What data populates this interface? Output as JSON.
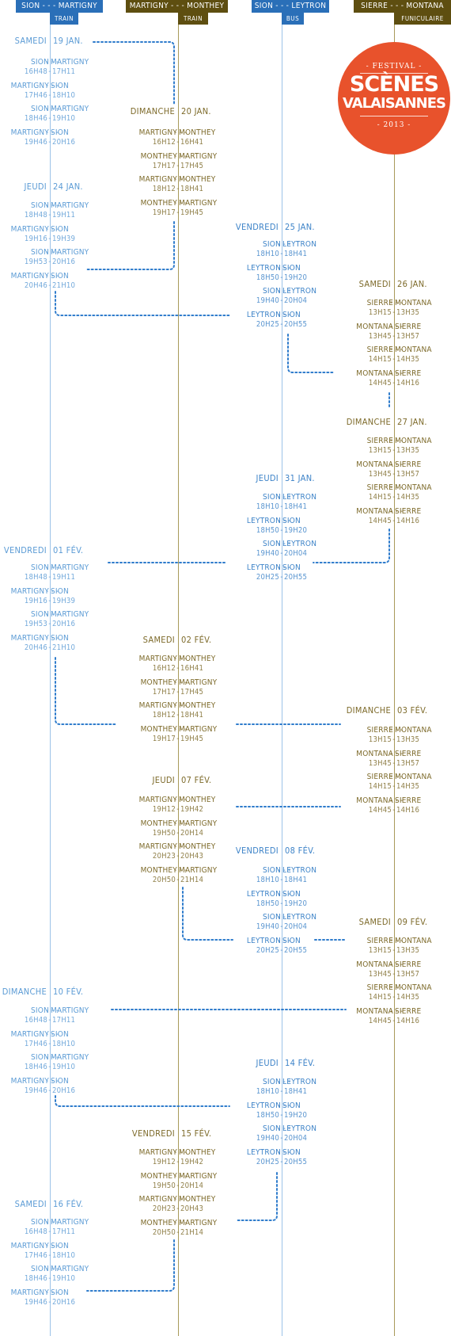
{
  "colors": {
    "train_line": "#5b9bd5",
    "mm_line": "#8a7a2e",
    "bus_line": "#5b9bd5",
    "fun_line": "#8a7a2e",
    "blue_header": "#2a6fb8",
    "olive_header": "#5e4e10",
    "logo": "#e8522c",
    "dots": "#2f7ccc"
  },
  "headers": [
    {
      "route": "SION - - - MARTIGNY",
      "mode": "TRAIN"
    },
    {
      "route": "MARTIGNY - - - MONTHEY",
      "mode": "TRAIN"
    },
    {
      "route": "SION - - - LEYTRON",
      "mode": "BUS"
    },
    {
      "route": "SIERRE - - - MONTANA",
      "mode": "FUNICULAIRE"
    }
  ],
  "logo": {
    "top": "- FESTIVAL -",
    "line1": "SCÈNES",
    "line2": "VALAISANNES",
    "year": "- 2013 -"
  },
  "days": [
    {
      "name": "SAMEDI",
      "date": "19 JAN."
    },
    {
      "name": "DIMANCHE",
      "date": "20 JAN."
    },
    {
      "name": "JEUDI",
      "date": "24 JAN."
    },
    {
      "name": "VENDREDI",
      "date": "25 JAN."
    },
    {
      "name": "SAMEDI",
      "date": "26 JAN."
    },
    {
      "name": "DIMANCHE",
      "date": "27 JAN."
    },
    {
      "name": "JEUDI",
      "date": "31 JAN."
    },
    {
      "name": "VENDREDI",
      "date": "01 FÉV."
    },
    {
      "name": "SAMEDI",
      "date": "02 FÉV."
    },
    {
      "name": "DIMANCHE",
      "date": "03 FÉV."
    },
    {
      "name": "JEUDI",
      "date": "07 FÉV."
    },
    {
      "name": "VENDREDI",
      "date": "08 FÉV."
    },
    {
      "name": "SAMEDI",
      "date": "09 FÉV."
    },
    {
      "name": "DIMANCHE",
      "date": "10 FÉV."
    },
    {
      "name": "JEUDI",
      "date": "14 FÉV."
    },
    {
      "name": "VENDREDI",
      "date": "15 FÉV."
    },
    {
      "name": "SAMEDI",
      "date": "16 FÉV."
    }
  ],
  "trips": [
    {
      "from": "SION",
      "to": "MARTIGNY",
      "dep": "16H48",
      "arr": "17H11"
    },
    {
      "from": "MARTIGNY",
      "to": "SION",
      "dep": "17H46",
      "arr": "18H10"
    },
    {
      "from": "SION",
      "to": "MARTIGNY",
      "dep": "18H46",
      "arr": "19H10"
    },
    {
      "from": "MARTIGNY",
      "to": "SION",
      "dep": "19H46",
      "arr": "20H16"
    },
    {
      "from": "MARTIGNY",
      "to": "MONTHEY",
      "dep": "16H12",
      "arr": "16H41"
    },
    {
      "from": "MONTHEY",
      "to": "MARTIGNY",
      "dep": "17H17",
      "arr": "17H45"
    },
    {
      "from": "MARTIGNY",
      "to": "MONTHEY",
      "dep": "18H12",
      "arr": "18H41"
    },
    {
      "from": "MONTHEY",
      "to": "MARTIGNY",
      "dep": "19H17",
      "arr": "19H45"
    },
    {
      "from": "SION",
      "to": "MARTIGNY",
      "dep": "18H48",
      "arr": "19H11"
    },
    {
      "from": "MARTIGNY",
      "to": "SION",
      "dep": "19H16",
      "arr": "19H39"
    },
    {
      "from": "SION",
      "to": "MARTIGNY",
      "dep": "19H53",
      "arr": "20H16"
    },
    {
      "from": "MARTIGNY",
      "to": "SION",
      "dep": "20H46",
      "arr": "21H10"
    },
    {
      "from": "SION",
      "to": "LEYTRON",
      "dep": "18H10",
      "arr": "18H41"
    },
    {
      "from": "LEYTRON",
      "to": "SION",
      "dep": "18H50",
      "arr": "19H20"
    },
    {
      "from": "SION",
      "to": "LEYTRON",
      "dep": "19H40",
      "arr": "20H04"
    },
    {
      "from": "LEYTRON",
      "to": "SION",
      "dep": "20H25",
      "arr": "20H55"
    },
    {
      "from": "SIERRE",
      "to": "MONTANA",
      "dep": "13H15",
      "arr": "13H35"
    },
    {
      "from": "MONTANA",
      "to": "SIERRE",
      "dep": "13H45",
      "arr": "13H57"
    },
    {
      "from": "SIERRE",
      "to": "MONTANA",
      "dep": "14H15",
      "arr": "14H35"
    },
    {
      "from": "MONTANA",
      "to": "SIERRE",
      "dep": "14H45",
      "arr": "14H16"
    },
    {
      "from": "SIERRE",
      "to": "MONTANA",
      "dep": "13H15",
      "arr": "13H35"
    },
    {
      "from": "MONTANA",
      "to": "SIERRE",
      "dep": "13H45",
      "arr": "13H57"
    },
    {
      "from": "SIERRE",
      "to": "MONTANA",
      "dep": "14H15",
      "arr": "14H35"
    },
    {
      "from": "MONTANA",
      "to": "SIERRE",
      "dep": "14H45",
      "arr": "14H16"
    },
    {
      "from": "SION",
      "to": "LEYTRON",
      "dep": "18H10",
      "arr": "18H41"
    },
    {
      "from": "LEYTRON",
      "to": "SION",
      "dep": "18H50",
      "arr": "19H20"
    },
    {
      "from": "SION",
      "to": "LEYTRON",
      "dep": "19H40",
      "arr": "20H04"
    },
    {
      "from": "LEYTRON",
      "to": "SION",
      "dep": "20H25",
      "arr": "20H55"
    },
    {
      "from": "SION",
      "to": "MARTIGNY",
      "dep": "18H48",
      "arr": "19H11"
    },
    {
      "from": "MARTIGNY",
      "to": "SION",
      "dep": "19H16",
      "arr": "19H39"
    },
    {
      "from": "SION",
      "to": "MARTIGNY",
      "dep": "19H53",
      "arr": "20H16"
    },
    {
      "from": "MARTIGNY",
      "to": "SION",
      "dep": "20H46",
      "arr": "21H10"
    },
    {
      "from": "MARTIGNY",
      "to": "MONTHEY",
      "dep": "16H12",
      "arr": "16H41"
    },
    {
      "from": "MONTHEY",
      "to": "MARTIGNY",
      "dep": "17H17",
      "arr": "17H45"
    },
    {
      "from": "MARTIGNY",
      "to": "MONTHEY",
      "dep": "18H12",
      "arr": "18H41"
    },
    {
      "from": "MONTHEY",
      "to": "MARTIGNY",
      "dep": "19H17",
      "arr": "19H45"
    },
    {
      "from": "SIERRE",
      "to": "MONTANA",
      "dep": "13H15",
      "arr": "13H35"
    },
    {
      "from": "MONTANA",
      "to": "SIERRE",
      "dep": "13H45",
      "arr": "13H57"
    },
    {
      "from": "SIERRE",
      "to": "MONTANA",
      "dep": "14H15",
      "arr": "14H35"
    },
    {
      "from": "MONTANA",
      "to": "SIERRE",
      "dep": "14H45",
      "arr": "14H16"
    },
    {
      "from": "MARTIGNY",
      "to": "MONTHEY",
      "dep": "19H12",
      "arr": "19H42"
    },
    {
      "from": "MONTHEY",
      "to": "MARTIGNY",
      "dep": "19H50",
      "arr": "20H14"
    },
    {
      "from": "MARTIGNY",
      "to": "MONTHEY",
      "dep": "20H23",
      "arr": "20H43"
    },
    {
      "from": "MONTHEY",
      "to": "MARTIGNY",
      "dep": "20H50",
      "arr": "21H14"
    },
    {
      "from": "SION",
      "to": "LEYTRON",
      "dep": "18H10",
      "arr": "18H41"
    },
    {
      "from": "LEYTRON",
      "to": "SION",
      "dep": "18H50",
      "arr": "19H20"
    },
    {
      "from": "SION",
      "to": "LEYTRON",
      "dep": "19H40",
      "arr": "20H04"
    },
    {
      "from": "LEYTRON",
      "to": "SION",
      "dep": "20H25",
      "arr": "20H55"
    },
    {
      "from": "SIERRE",
      "to": "MONTANA",
      "dep": "13H15",
      "arr": "13H35"
    },
    {
      "from": "MONTANA",
      "to": "SIERRE",
      "dep": "13H45",
      "arr": "13H57"
    },
    {
      "from": "SIERRE",
      "to": "MONTANA",
      "dep": "14H15",
      "arr": "14H35"
    },
    {
      "from": "MONTANA",
      "to": "SIERRE",
      "dep": "14H45",
      "arr": "14H16"
    },
    {
      "from": "SION",
      "to": "MARTIGNY",
      "dep": "16H48",
      "arr": "17H11"
    },
    {
      "from": "MARTIGNY",
      "to": "SION",
      "dep": "17H46",
      "arr": "18H10"
    },
    {
      "from": "SION",
      "to": "MARTIGNY",
      "dep": "18H46",
      "arr": "19H10"
    },
    {
      "from": "MARTIGNY",
      "to": "SION",
      "dep": "19H46",
      "arr": "20H16"
    },
    {
      "from": "SION",
      "to": "LEYTRON",
      "dep": "18H10",
      "arr": "18H41"
    },
    {
      "from": "LEYTRON",
      "to": "SION",
      "dep": "18H50",
      "arr": "19H20"
    },
    {
      "from": "SION",
      "to": "LEYTRON",
      "dep": "19H40",
      "arr": "20H04"
    },
    {
      "from": "LEYTRON",
      "to": "SION",
      "dep": "20H25",
      "arr": "20H55"
    },
    {
      "from": "MARTIGNY",
      "to": "MONTHEY",
      "dep": "19H12",
      "arr": "19H42"
    },
    {
      "from": "MONTHEY",
      "to": "MARTIGNY",
      "dep": "19H50",
      "arr": "20H14"
    },
    {
      "from": "MARTIGNY",
      "to": "MONTHEY",
      "dep": "20H23",
      "arr": "20H43"
    },
    {
      "from": "MONTHEY",
      "to": "MARTIGNY",
      "dep": "20H50",
      "arr": "21H14"
    },
    {
      "from": "SION",
      "to": "MARTIGNY",
      "dep": "16H48",
      "arr": "17H11"
    },
    {
      "from": "MARTIGNY",
      "to": "SION",
      "dep": "17H46",
      "arr": "18H10"
    },
    {
      "from": "SION",
      "to": "MARTIGNY",
      "dep": "18H46",
      "arr": "19H10"
    },
    {
      "from": "MARTIGNY",
      "to": "SION",
      "dep": "19H46",
      "arr": "20H16"
    }
  ]
}
